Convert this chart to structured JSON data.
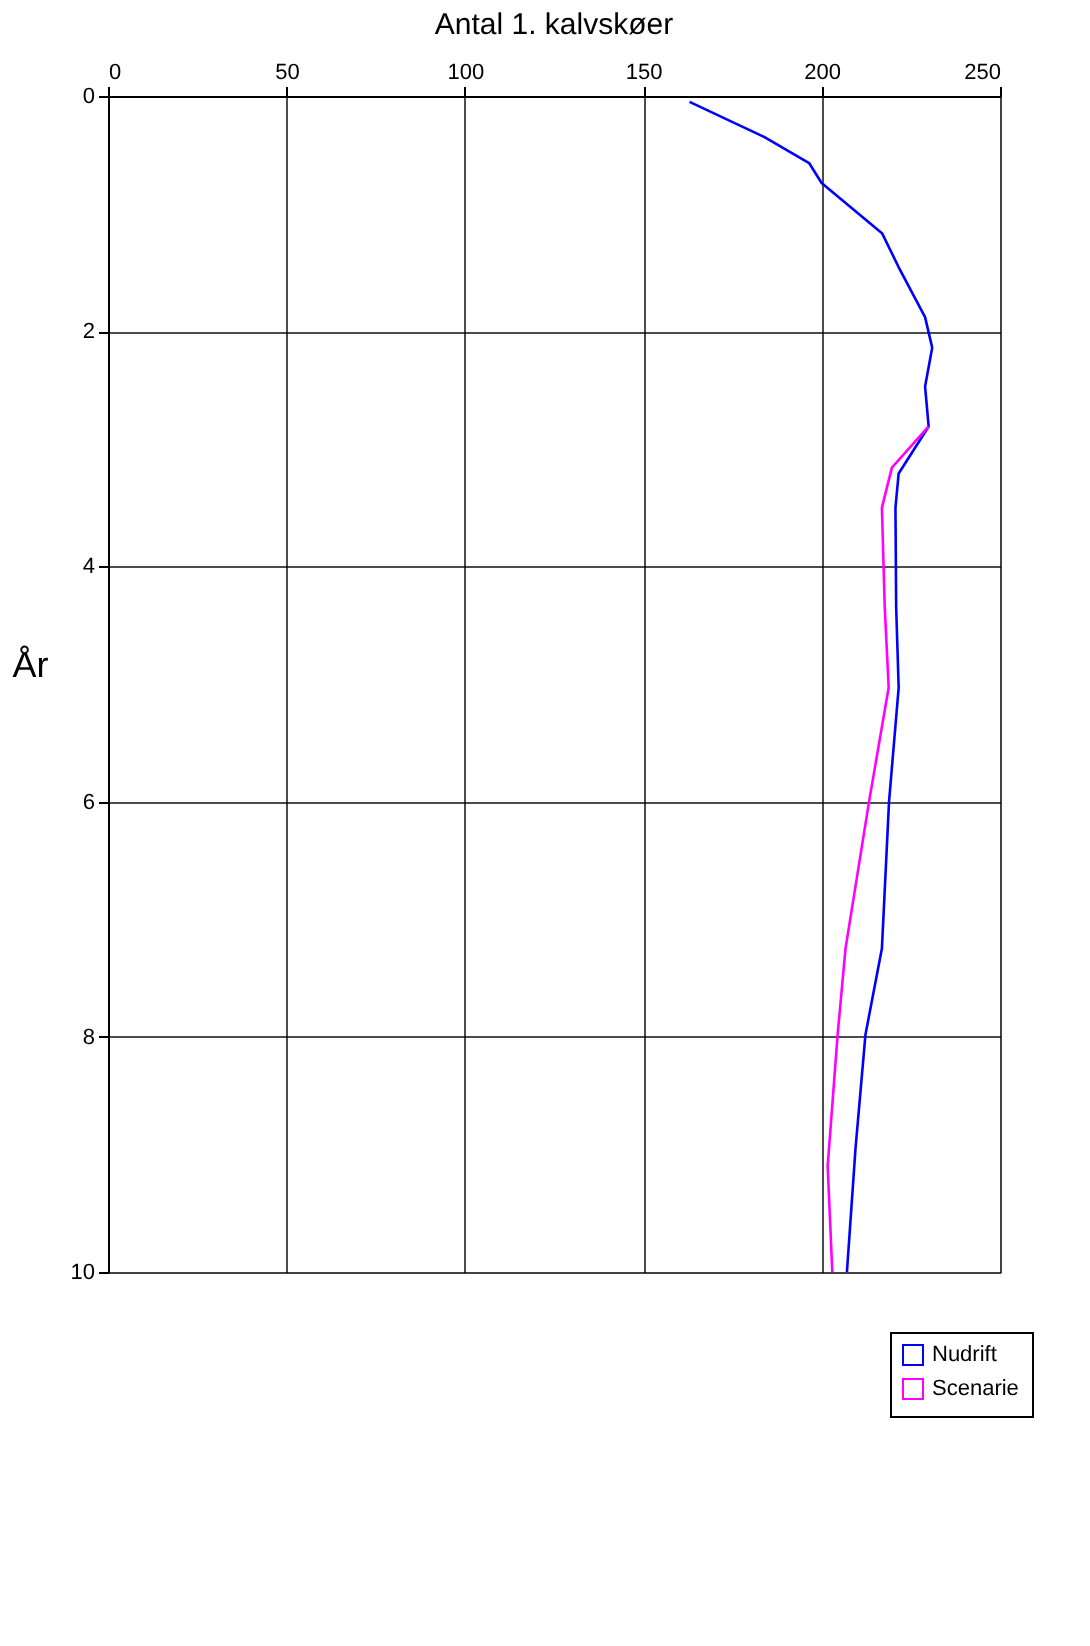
{
  "chart_data": {
    "type": "line",
    "title": "Antal 1. kalvskøer",
    "ylabel": "År",
    "xlim": [
      0,
      250
    ],
    "xticks": [
      0,
      50,
      100,
      150,
      200,
      250
    ],
    "ylim": [
      10,
      0
    ],
    "yticks": [
      0,
      2,
      4,
      6,
      8,
      10
    ],
    "grid": true,
    "legend": "bottom right",
    "line_style": "solid",
    "series": [
      {
        "name": "Nudrift",
        "color": "#0000ff",
        "values": [
          0.05,
          0.35,
          0.57,
          0.74,
          1.17,
          1.45,
          1.88,
          2.14,
          2.47,
          2.81,
          3.21,
          3.5,
          4.35,
          5.03,
          6.0,
          7.25,
          7.98,
          8.95,
          10
        ],
        "x": [
          163,
          184,
          196.5,
          200,
          217,
          221.5,
          229,
          231,
          229,
          230,
          221.6,
          220.7,
          220.9,
          221.6,
          218.9,
          216.9,
          212.3,
          209.5,
          207.1
        ]
      },
      {
        "name": "Scenarie",
        "color": "#ff00ff",
        "values": [
          2.81,
          3.16,
          3.5,
          4.35,
          5.03,
          6.0,
          7.25,
          7.98,
          9.1,
          10
        ],
        "x": [
          230,
          219.7,
          216.9,
          217.7,
          218.8,
          213.3,
          206.7,
          204.5,
          201.7,
          203
        ]
      }
    ]
  }
}
